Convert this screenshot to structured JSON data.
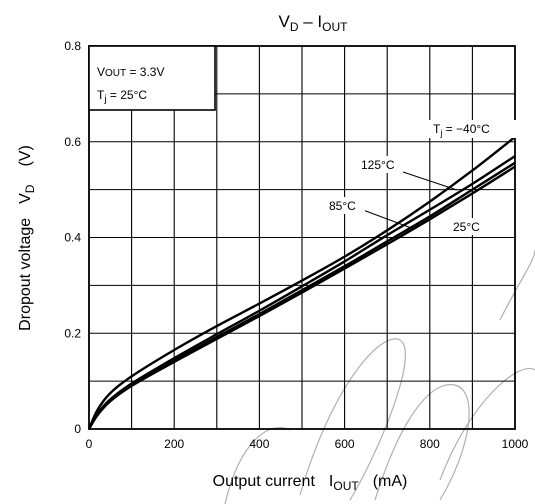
{
  "chart_data": {
    "type": "line",
    "title": {
      "main": "V",
      "main_sub": "D",
      "sep": " – I",
      "end_sub": "OUT"
    },
    "xlabel": {
      "pre": "Output current",
      "sym": "I",
      "sym_sub": "OUT",
      "unit": "(mA)"
    },
    "ylabel": {
      "pre": "Dropout voltage",
      "sym": "V",
      "sym_sub": "D",
      "unit": "(V)"
    },
    "xlim": [
      0,
      1000
    ],
    "ylim": [
      0,
      0.8
    ],
    "xticks": [
      "0",
      "200",
      "400",
      "600",
      "800",
      "1000"
    ],
    "yticks": [
      "0",
      "0.2",
      "0.4",
      "0.6",
      "0.8"
    ],
    "grid": true,
    "conditions": {
      "line1_sym": "V",
      "line1_sub": "OUT",
      "line1_val": " = 3.3V",
      "line2_sym": "T",
      "line2_sub": "j",
      "line2_val": " = 25°C"
    },
    "series": [
      {
        "name": "Tj = −40°C",
        "x": [
          0,
          20,
          50,
          100,
          200,
          300,
          400,
          500,
          600,
          700,
          800,
          900,
          1000
        ],
        "y": [
          0,
          0.04,
          0.075,
          0.11,
          0.165,
          0.215,
          0.262,
          0.31,
          0.36,
          0.415,
          0.475,
          0.54,
          0.61
        ]
      },
      {
        "name": "125°C",
        "x": [
          0,
          20,
          50,
          100,
          200,
          300,
          400,
          500,
          600,
          700,
          800,
          900,
          1000
        ],
        "y": [
          0,
          0.032,
          0.062,
          0.095,
          0.148,
          0.198,
          0.247,
          0.298,
          0.35,
          0.405,
          0.458,
          0.512,
          0.57
        ]
      },
      {
        "name": "85°C",
        "x": [
          0,
          20,
          50,
          100,
          200,
          300,
          400,
          500,
          600,
          700,
          800,
          900,
          1000
        ],
        "y": [
          0,
          0.03,
          0.06,
          0.092,
          0.143,
          0.192,
          0.24,
          0.29,
          0.34,
          0.392,
          0.444,
          0.5,
          0.556
        ]
      },
      {
        "name": "25°C",
        "x": [
          0,
          20,
          50,
          100,
          200,
          300,
          400,
          500,
          600,
          700,
          800,
          900,
          1000
        ],
        "y": [
          0,
          0.029,
          0.058,
          0.09,
          0.14,
          0.188,
          0.236,
          0.285,
          0.335,
          0.386,
          0.438,
          0.492,
          0.548
        ]
      }
    ],
    "series_labels": {
      "tj40_sym": "T",
      "tj40_sub": "j",
      "tj40_val": " = −40°C",
      "t125": "125°C",
      "t85": "85°C",
      "t25": "25°C"
    }
  }
}
